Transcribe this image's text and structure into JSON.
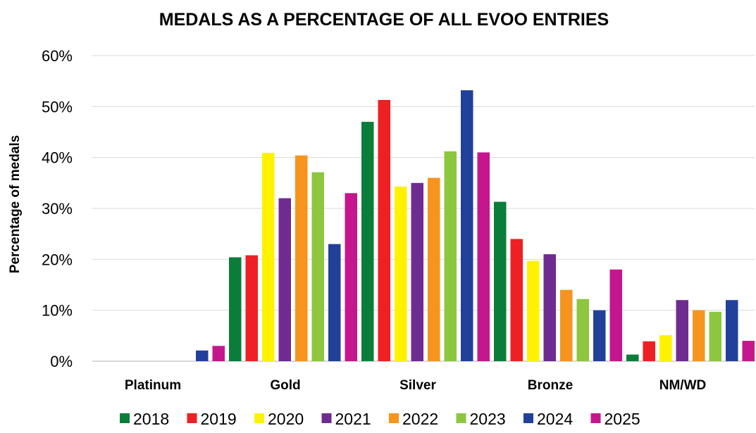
{
  "chart_data": {
    "type": "bar",
    "title": "MEDALS AS A PERCENTAGE OF ALL EVOO ENTRIES",
    "xlabel": "",
    "ylabel": "Percentage of medals",
    "ylim": [
      0,
      60
    ],
    "yticks": [
      "0%",
      "10%",
      "20%",
      "30%",
      "40%",
      "50%",
      "60%"
    ],
    "ytick_values": [
      0,
      10,
      20,
      30,
      40,
      50,
      60
    ],
    "grid": true,
    "legend_position": "bottom",
    "categories": [
      "Platinum",
      "Gold",
      "Silver",
      "Bronze",
      "NM/WD"
    ],
    "series": [
      {
        "name": "2018",
        "color": "#0a7d3a",
        "values": [
          0,
          20.4,
          47,
          31.3,
          1.3
        ]
      },
      {
        "name": "2019",
        "color": "#ee2024",
        "values": [
          0,
          20.8,
          51.3,
          24,
          3.9
        ]
      },
      {
        "name": "2020",
        "color": "#fff200",
        "values": [
          0,
          40.9,
          34.3,
          19.7,
          5.1
        ]
      },
      {
        "name": "2021",
        "color": "#6e2c91",
        "values": [
          0,
          32,
          35,
          21,
          12
        ]
      },
      {
        "name": "2022",
        "color": "#f7941d",
        "values": [
          0,
          40.4,
          36,
          14,
          10
        ]
      },
      {
        "name": "2023",
        "color": "#8dc63f",
        "values": [
          0,
          37.1,
          41.2,
          12.2,
          9.7
        ]
      },
      {
        "name": "2024",
        "color": "#21409a",
        "values": [
          2.1,
          23,
          53.2,
          10,
          12
        ]
      },
      {
        "name": "2025",
        "color": "#c4178d",
        "values": [
          3,
          33,
          41,
          18,
          4
        ]
      }
    ]
  }
}
